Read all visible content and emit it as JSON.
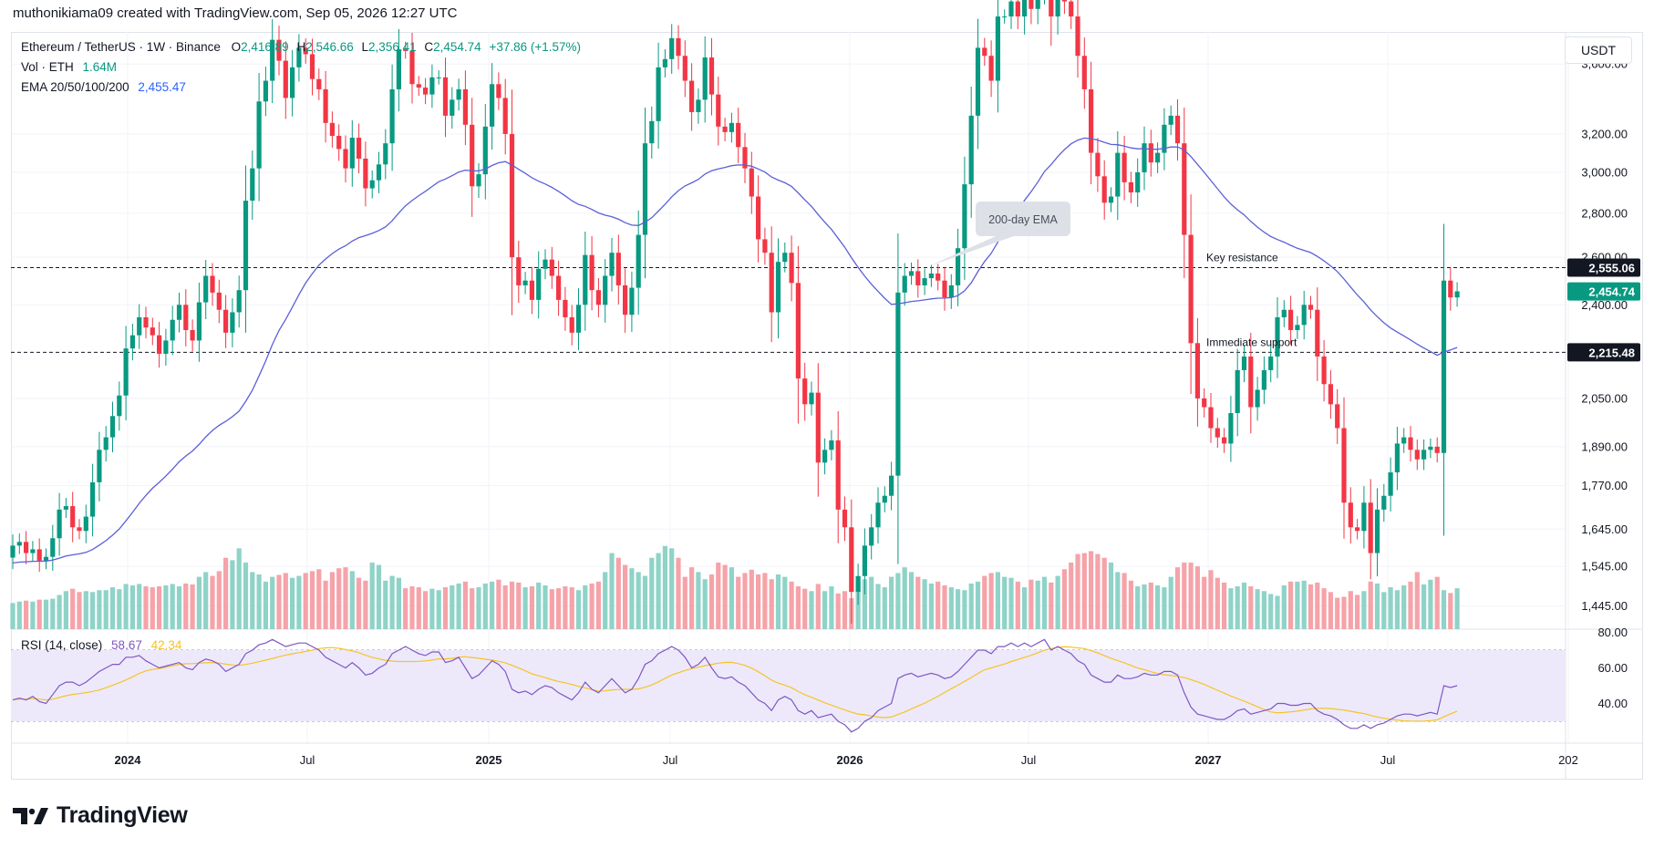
{
  "header": {
    "credit": "muthonikiama09 created with TradingView.com, Sep 05, 2026 12:27 UTC"
  },
  "legend": {
    "symbol": "Ethereum / TetherUS · 1W · Binance",
    "o_label": "O",
    "o_value": "2,416.89",
    "h_label": "H",
    "h_value": "2,546.66",
    "l_label": "L",
    "l_value": "2,356.41",
    "c_label": "C",
    "c_value": "2,454.74",
    "change": "+37.86 (+1.57%)",
    "vol_label": "Vol · ETH",
    "vol_value": "1.64M",
    "ema_label": "EMA 20/50/100/200",
    "ema_value": "2,455.47"
  },
  "rsi_legend": {
    "label": "RSI (14, close)",
    "value": "58.67",
    "ma_value": "42.34"
  },
  "unit_button": "USDT",
  "footer": {
    "brand": "TradingView"
  },
  "colors": {
    "up": "#089981",
    "down": "#f23645",
    "vol_up": "#8fd3c8",
    "vol_down": "#f5a3a9",
    "ema": "#5b5fd9",
    "rsi": "#7e57c2",
    "rsi_ma": "#f7c325",
    "band": "#ede9fb"
  },
  "chart_data": [
    {
      "type": "candlestick",
      "y_scale": "log",
      "ylim": [
        1390,
        3800
      ],
      "x_ticks": [
        "2024",
        "Jul",
        "2025",
        "Jul",
        "2026",
        "Jul",
        "2027",
        "Jul",
        "202"
      ],
      "y_ticks": [
        "3,600.00",
        "3,200.00",
        "3,000.00",
        "2,800.00",
        "2,600.00",
        "2,400.00",
        "2,050.00",
        "1,890.00",
        "1,770.00",
        "1,645.00",
        "1,545.00",
        "1,445.00"
      ],
      "price_labels": [
        {
          "text": "2,555.06",
          "value": 2555.06,
          "style": "dark"
        },
        {
          "text": "2,454.74",
          "value": 2454.74,
          "style": "green"
        },
        {
          "text": "2,215.48",
          "value": 2215.48,
          "style": "dark"
        }
      ],
      "horizontal_lines": [
        {
          "label": "Key resistance",
          "value": 2555.06
        },
        {
          "label": "Immediate support",
          "value": 2215.48
        }
      ],
      "callout": {
        "text": "200-day EMA"
      },
      "closes": [
        1600,
        1610,
        1580,
        1590,
        1560,
        1570,
        1620,
        1700,
        1710,
        1650,
        1640,
        1680,
        1780,
        1880,
        1920,
        1990,
        2060,
        2230,
        2280,
        2350,
        2310,
        2280,
        2210,
        2260,
        2340,
        2400,
        2300,
        2260,
        2410,
        2520,
        2450,
        2380,
        2290,
        2370,
        2460,
        2860,
        3020,
        3380,
        3500,
        3750,
        3620,
        3400,
        3580,
        3700,
        3660,
        3510,
        3450,
        3260,
        3190,
        3120,
        3020,
        3180,
        3070,
        2920,
        2960,
        3040,
        3150,
        3450,
        3690,
        3680,
        3480,
        3460,
        3420,
        3520,
        3520,
        3300,
        3390,
        3450,
        3250,
        2930,
        2990,
        3240,
        3480,
        3400,
        3200,
        2600,
        2480,
        2500,
        2420,
        2550,
        2590,
        2520,
        2420,
        2350,
        2290,
        2400,
        2610,
        2460,
        2400,
        2520,
        2620,
        2480,
        2360,
        2470,
        2700,
        3150,
        3270,
        3580,
        3630,
        3760,
        3650,
        3500,
        3320,
        3390,
        3640,
        3420,
        3240,
        3210,
        3260,
        3130,
        3020,
        2880,
        2680,
        2620,
        2370,
        2580,
        2620,
        2490,
        2120,
        2030,
        2070,
        1840,
        1880,
        1910,
        1700,
        1650,
        1480,
        1520,
        1600,
        1650,
        1720,
        1740,
        1800,
        2450,
        2520,
        2540,
        2480,
        2510,
        2530,
        2500,
        2430,
        2480,
        2640,
        2940,
        3300,
        3700,
        3650,
        3500,
        3900,
        3900,
        4000,
        3900,
        4100,
        3950,
        4100,
        4300,
        3900,
        4100,
        4000,
        3900,
        3650,
        3450,
        3100,
        2980,
        2850,
        2880,
        3100,
        2950,
        2900,
        3000,
        3150,
        3050,
        3100,
        3250,
        3300,
        3150,
        2700,
        2250,
        2050,
        2020,
        1950,
        1920,
        1900,
        2000,
        2150,
        2200,
        2020,
        2080,
        2150,
        2200,
        2350,
        2380,
        2300,
        2320,
        2400,
        2380,
        2200,
        2100,
        2030,
        1950,
        1720,
        1650,
        1640,
        1720,
        1580,
        1700,
        1740,
        1810,
        1900,
        1920,
        1880,
        1850,
        1880,
        1890,
        1870,
        2500,
        2430,
        2455
      ],
      "volumes": [
        55,
        58,
        60,
        58,
        62,
        62,
        64,
        72,
        80,
        85,
        78,
        80,
        78,
        82,
        82,
        88,
        84,
        95,
        92,
        95,
        90,
        88,
        90,
        92,
        95,
        90,
        96,
        94,
        110,
        120,
        112,
        122,
        150,
        145,
        170,
        140,
        120,
        115,
        100,
        110,
        114,
        118,
        108,
        112,
        118,
        122,
        126,
        102,
        120,
        128,
        130,
        122,
        108,
        102,
        140,
        135,
        102,
        112,
        108,
        86,
        90,
        88,
        80,
        85,
        82,
        88,
        92,
        96,
        100,
        86,
        88,
        96,
        100,
        104,
        92,
        100,
        98,
        88,
        90,
        98,
        92,
        84,
        86,
        90,
        88,
        82,
        92,
        96,
        100,
        120,
        160,
        150,
        135,
        128,
        120,
        112,
        150,
        160,
        175,
        170,
        150,
        110,
        130,
        120,
        105,
        115,
        140,
        135,
        130,
        110,
        118,
        125,
        115,
        118,
        105,
        115,
        110,
        100,
        90,
        85,
        80,
        95,
        80,
        90,
        75,
        80,
        65,
        100,
        105,
        110,
        95,
        88,
        110,
        118,
        130,
        120,
        110,
        105,
        96,
        100,
        92,
        88,
        84,
        82,
        96,
        100,
        112,
        118,
        120,
        110,
        108,
        100,
        88,
        104,
        102,
        110,
        98,
        112,
        126,
        140,
        158,
        160,
        164,
        158,
        150,
        140,
        120,
        118,
        102,
        90,
        94,
        98,
        92,
        88,
        110,
        130,
        140,
        140,
        132,
        110,
        124,
        108,
        98,
        86,
        90,
        98,
        90,
        84,
        80,
        74,
        70,
        92,
        100,
        100,
        102,
        94,
        98,
        86,
        78,
        66,
        68,
        80,
        72,
        80,
        100,
        96,
        78,
        88,
        82,
        92,
        100,
        120,
        94,
        104,
        110,
        82,
        76,
        86,
        96,
        96,
        110,
        130
      ],
      "rsi": [
        42,
        43,
        42,
        44,
        41,
        40,
        45,
        50,
        52,
        52,
        50,
        52,
        55,
        58,
        60,
        62,
        62,
        66,
        66,
        67,
        64,
        62,
        60,
        61,
        62,
        63,
        60,
        59,
        63,
        65,
        64,
        62,
        58,
        60,
        62,
        68,
        70,
        73,
        74,
        76,
        74,
        72,
        73,
        74,
        74,
        72,
        70,
        66,
        64,
        62,
        60,
        63,
        60,
        56,
        57,
        60,
        62,
        68,
        70,
        72,
        70,
        68,
        67,
        69,
        69,
        63,
        64,
        66,
        60,
        54,
        56,
        60,
        64,
        62,
        58,
        48,
        46,
        47,
        45,
        48,
        50,
        49,
        46,
        44,
        42,
        46,
        52,
        48,
        46,
        50,
        54,
        50,
        46,
        48,
        54,
        62,
        64,
        68,
        70,
        72,
        70,
        66,
        60,
        62,
        66,
        60,
        55,
        54,
        55,
        52,
        50,
        46,
        42,
        40,
        36,
        42,
        44,
        42,
        36,
        34,
        36,
        32,
        33,
        34,
        30,
        28,
        24,
        26,
        30,
        32,
        36,
        38,
        40,
        54,
        56,
        57,
        55,
        56,
        57,
        56,
        54,
        55,
        58,
        62,
        66,
        70,
        70,
        68,
        72,
        72,
        74,
        72,
        74,
        72,
        74,
        76,
        70,
        72,
        70,
        68,
        64,
        62,
        56,
        54,
        52,
        52,
        56,
        54,
        54,
        55,
        57,
        56,
        56,
        58,
        58,
        56,
        46,
        38,
        34,
        33,
        32,
        31,
        31,
        33,
        36,
        37,
        34,
        35,
        36,
        37,
        40,
        40,
        39,
        39,
        40,
        40,
        36,
        34,
        33,
        31,
        28,
        26,
        26,
        28,
        26,
        28,
        29,
        31,
        33,
        34,
        34,
        33,
        34,
        35,
        34,
        50,
        49,
        50
      ]
    }
  ]
}
